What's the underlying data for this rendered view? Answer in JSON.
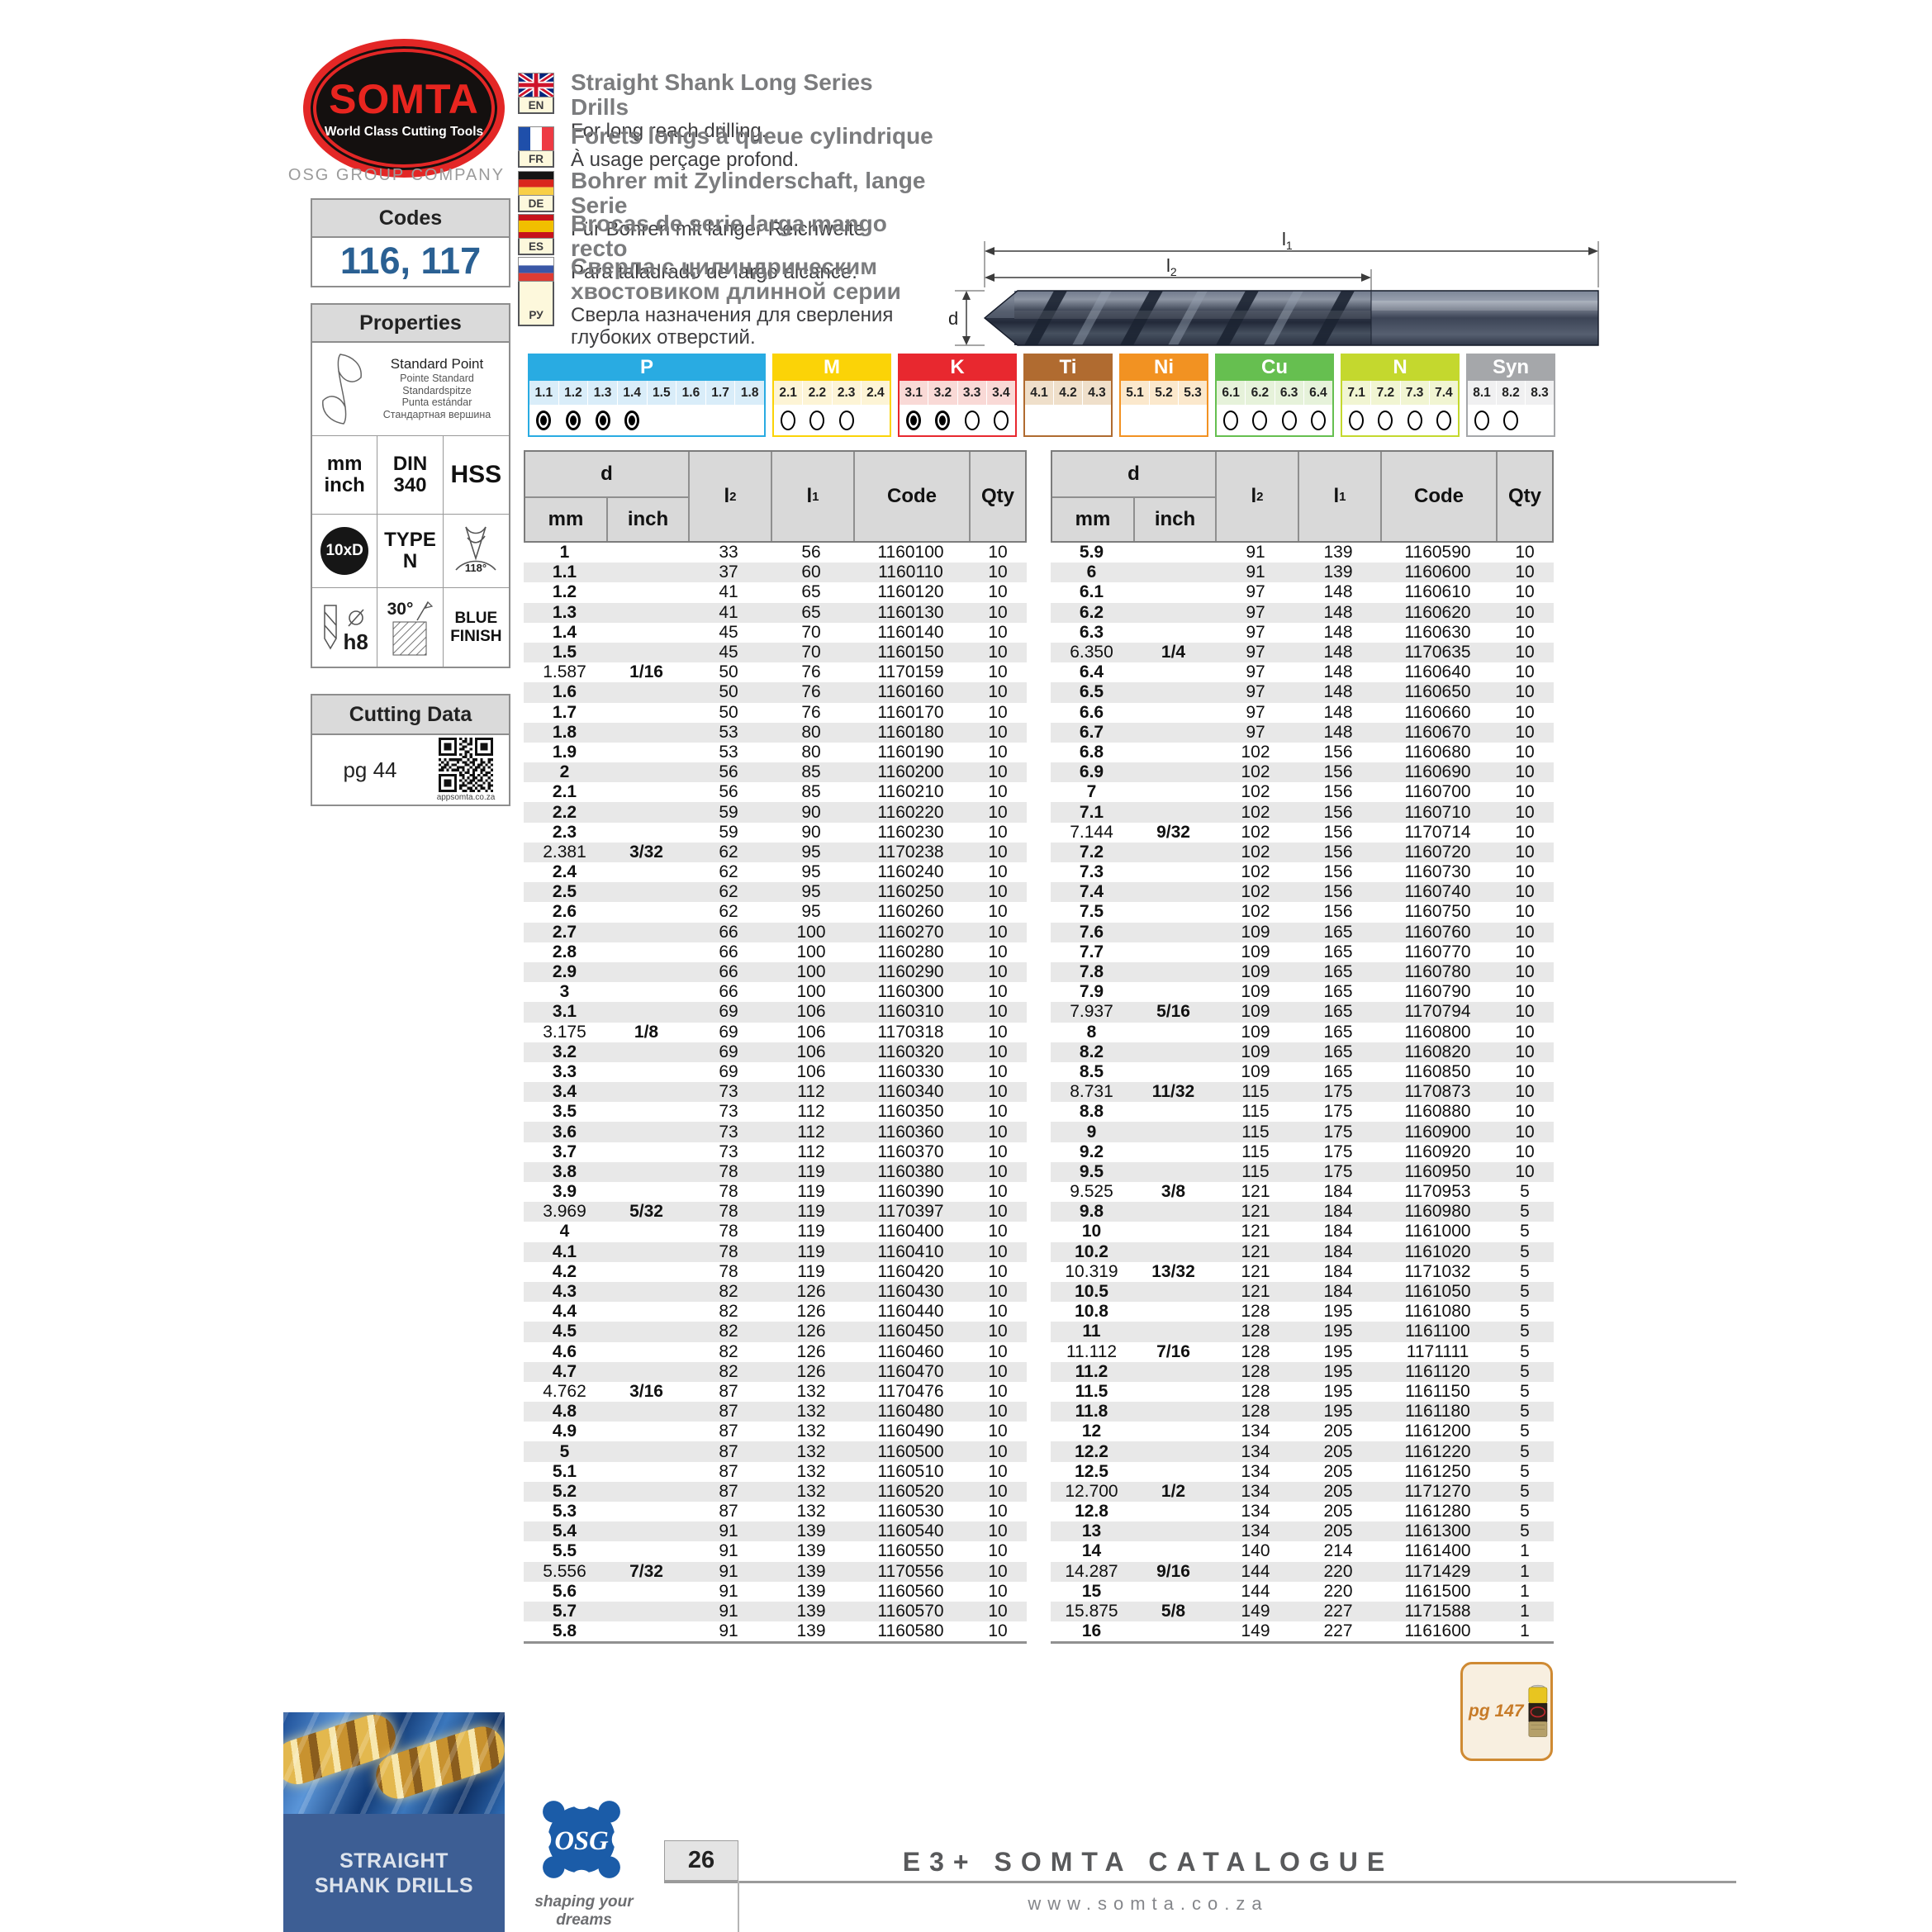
{
  "brand": {
    "logo_text": "SOMTA",
    "logo_tagline": "World Class Cutting Tools",
    "company": "OSG GROUP COMPANY",
    "osg_monogram": "OSG"
  },
  "codes": {
    "title": "Codes",
    "value": "116, 117"
  },
  "properties": {
    "title": "Properties",
    "point_names": [
      "Standard Point",
      "Pointe Standard",
      "Standardspitze",
      "Punta estándar",
      "Стандартная вершина"
    ],
    "grid": [
      {
        "kind": "lines",
        "lines": [
          "mm",
          "inch"
        ]
      },
      {
        "kind": "lines",
        "lines": [
          "DIN",
          "340"
        ]
      },
      {
        "kind": "lines",
        "size": "xl",
        "lines": [
          "HSS"
        ]
      },
      {
        "kind": "badge",
        "lines": [
          "10xD"
        ]
      },
      {
        "kind": "lines",
        "lines": [
          "TYPE",
          "N"
        ]
      },
      {
        "kind": "tip",
        "lines": [
          "118°"
        ]
      },
      {
        "kind": "h8",
        "sym": "⌀",
        "lines": [
          "h8"
        ]
      },
      {
        "kind": "angle",
        "lines": [
          "30°"
        ]
      },
      {
        "kind": "lines",
        "size": "md",
        "lines": [
          "BLUE",
          "FINISH"
        ]
      }
    ]
  },
  "cutting": {
    "title": "Cutting Data",
    "page_ref": "pg 44",
    "qr_caption": "appsomta.co.za"
  },
  "languages": [
    {
      "flag": "gb",
      "code": "EN",
      "title": "Straight Shank Long Series Drills",
      "subtitle": "For long reach drilling."
    },
    {
      "flag": "fr",
      "code": "FR",
      "title": "Forets longs à queue cylindrique",
      "subtitle": "À usage perçage profond."
    },
    {
      "flag": "de",
      "code": "DE",
      "title": "Bohrer mit Zylinderschaft, lange Serie",
      "subtitle": "Für Bohren mit langer Reichweite."
    },
    {
      "flag": "es",
      "code": "ES",
      "title": "Brocas de serie larga mango recto",
      "subtitle": "Para taladrado de largo alcance."
    },
    {
      "flag": "ru",
      "code": "РУ",
      "title": "Сверла с цилиндрическим хвостовиком длинной серии",
      "subtitle": "Сверла назначения для сверления глубоких отверстий."
    }
  ],
  "diagram": {
    "l_main": "l",
    "l1_sub": "1",
    "l2_sub": "2",
    "d_label": "d"
  },
  "materials": [
    {
      "name": "P",
      "color": "#29abe2",
      "tint": "#d9edf9",
      "items": [
        {
          "label": "1.1",
          "mark": "filled"
        },
        {
          "label": "1.2",
          "mark": "filled"
        },
        {
          "label": "1.3",
          "mark": "filled"
        },
        {
          "label": "1.4",
          "mark": "filled"
        },
        {
          "label": "1.5",
          "mark": "none"
        },
        {
          "label": "1.6",
          "mark": "none"
        },
        {
          "label": "1.7",
          "mark": "none"
        },
        {
          "label": "1.8",
          "mark": "none"
        }
      ]
    },
    {
      "name": "M",
      "color": "#fbd307",
      "tint": "#fdf4d5",
      "items": [
        {
          "label": "2.1",
          "mark": "open"
        },
        {
          "label": "2.2",
          "mark": "open"
        },
        {
          "label": "2.3",
          "mark": "open"
        },
        {
          "label": "2.4",
          "mark": "none"
        }
      ]
    },
    {
      "name": "K",
      "color": "#e8282f",
      "tint": "#f9d9d6",
      "items": [
        {
          "label": "3.1",
          "mark": "filled"
        },
        {
          "label": "3.2",
          "mark": "filled"
        },
        {
          "label": "3.3",
          "mark": "open"
        },
        {
          "label": "3.4",
          "mark": "open"
        }
      ]
    },
    {
      "name": "Ti",
      "color": "#b06b30",
      "tint": "#efdfca",
      "items": [
        {
          "label": "4.1",
          "mark": "none"
        },
        {
          "label": "4.2",
          "mark": "none"
        },
        {
          "label": "4.3",
          "mark": "none"
        }
      ]
    },
    {
      "name": "Ni",
      "color": "#f29222",
      "tint": "#fbe8cc",
      "items": [
        {
          "label": "5.1",
          "mark": "none"
        },
        {
          "label": "5.2",
          "mark": "none"
        },
        {
          "label": "5.3",
          "mark": "none"
        }
      ]
    },
    {
      "name": "Cu",
      "color": "#66bf50",
      "tint": "#e6f2da",
      "items": [
        {
          "label": "6.1",
          "mark": "open"
        },
        {
          "label": "6.2",
          "mark": "open"
        },
        {
          "label": "6.3",
          "mark": "open"
        },
        {
          "label": "6.4",
          "mark": "open"
        }
      ]
    },
    {
      "name": "N",
      "color": "#c4d82e",
      "tint": "#f1f5d2",
      "items": [
        {
          "label": "7.1",
          "mark": "open"
        },
        {
          "label": "7.2",
          "mark": "open"
        },
        {
          "label": "7.3",
          "mark": "open"
        },
        {
          "label": "7.4",
          "mark": "open"
        }
      ]
    },
    {
      "name": "Syn",
      "color": "#a5a7aa",
      "tint": "#f0f0f1",
      "items": [
        {
          "label": "8.1",
          "mark": "open"
        },
        {
          "label": "8.2",
          "mark": "open"
        },
        {
          "label": "8.3",
          "mark": "none"
        }
      ]
    }
  ],
  "table": {
    "col_d": "d",
    "col_mm": "mm",
    "col_inch": "inch",
    "col_l_main": "l",
    "col_l2_sub": "2",
    "col_l1_sub": "1",
    "col_code": "Code",
    "col_qty": "Qty",
    "left_rows": [
      [
        "1",
        "",
        "33",
        "56",
        "1160100",
        "10"
      ],
      [
        "1.1",
        "",
        "37",
        "60",
        "1160110",
        "10"
      ],
      [
        "1.2",
        "",
        "41",
        "65",
        "1160120",
        "10"
      ],
      [
        "1.3",
        "",
        "41",
        "65",
        "1160130",
        "10"
      ],
      [
        "1.4",
        "",
        "45",
        "70",
        "1160140",
        "10"
      ],
      [
        "1.5",
        "",
        "45",
        "70",
        "1160150",
        "10"
      ],
      [
        "1.587",
        "1/16",
        "50",
        "76",
        "1170159",
        "10"
      ],
      [
        "1.6",
        "",
        "50",
        "76",
        "1160160",
        "10"
      ],
      [
        "1.7",
        "",
        "50",
        "76",
        "1160170",
        "10"
      ],
      [
        "1.8",
        "",
        "53",
        "80",
        "1160180",
        "10"
      ],
      [
        "1.9",
        "",
        "53",
        "80",
        "1160190",
        "10"
      ],
      [
        "2",
        "",
        "56",
        "85",
        "1160200",
        "10"
      ],
      [
        "2.1",
        "",
        "56",
        "85",
        "1160210",
        "10"
      ],
      [
        "2.2",
        "",
        "59",
        "90",
        "1160220",
        "10"
      ],
      [
        "2.3",
        "",
        "59",
        "90",
        "1160230",
        "10"
      ],
      [
        "2.381",
        "3/32",
        "62",
        "95",
        "1170238",
        "10"
      ],
      [
        "2.4",
        "",
        "62",
        "95",
        "1160240",
        "10"
      ],
      [
        "2.5",
        "",
        "62",
        "95",
        "1160250",
        "10"
      ],
      [
        "2.6",
        "",
        "62",
        "95",
        "1160260",
        "10"
      ],
      [
        "2.7",
        "",
        "66",
        "100",
        "1160270",
        "10"
      ],
      [
        "2.8",
        "",
        "66",
        "100",
        "1160280",
        "10"
      ],
      [
        "2.9",
        "",
        "66",
        "100",
        "1160290",
        "10"
      ],
      [
        "3",
        "",
        "66",
        "100",
        "1160300",
        "10"
      ],
      [
        "3.1",
        "",
        "69",
        "106",
        "1160310",
        "10"
      ],
      [
        "3.175",
        "1/8",
        "69",
        "106",
        "1170318",
        "10"
      ],
      [
        "3.2",
        "",
        "69",
        "106",
        "1160320",
        "10"
      ],
      [
        "3.3",
        "",
        "69",
        "106",
        "1160330",
        "10"
      ],
      [
        "3.4",
        "",
        "73",
        "112",
        "1160340",
        "10"
      ],
      [
        "3.5",
        "",
        "73",
        "112",
        "1160350",
        "10"
      ],
      [
        "3.6",
        "",
        "73",
        "112",
        "1160360",
        "10"
      ],
      [
        "3.7",
        "",
        "73",
        "112",
        "1160370",
        "10"
      ],
      [
        "3.8",
        "",
        "78",
        "119",
        "1160380",
        "10"
      ],
      [
        "3.9",
        "",
        "78",
        "119",
        "1160390",
        "10"
      ],
      [
        "3.969",
        "5/32",
        "78",
        "119",
        "1170397",
        "10"
      ],
      [
        "4",
        "",
        "78",
        "119",
        "1160400",
        "10"
      ],
      [
        "4.1",
        "",
        "78",
        "119",
        "1160410",
        "10"
      ],
      [
        "4.2",
        "",
        "78",
        "119",
        "1160420",
        "10"
      ],
      [
        "4.3",
        "",
        "82",
        "126",
        "1160430",
        "10"
      ],
      [
        "4.4",
        "",
        "82",
        "126",
        "1160440",
        "10"
      ],
      [
        "4.5",
        "",
        "82",
        "126",
        "1160450",
        "10"
      ],
      [
        "4.6",
        "",
        "82",
        "126",
        "1160460",
        "10"
      ],
      [
        "4.7",
        "",
        "82",
        "126",
        "1160470",
        "10"
      ],
      [
        "4.762",
        "3/16",
        "87",
        "132",
        "1170476",
        "10"
      ],
      [
        "4.8",
        "",
        "87",
        "132",
        "1160480",
        "10"
      ],
      [
        "4.9",
        "",
        "87",
        "132",
        "1160490",
        "10"
      ],
      [
        "5",
        "",
        "87",
        "132",
        "1160500",
        "10"
      ],
      [
        "5.1",
        "",
        "87",
        "132",
        "1160510",
        "10"
      ],
      [
        "5.2",
        "",
        "87",
        "132",
        "1160520",
        "10"
      ],
      [
        "5.3",
        "",
        "87",
        "132",
        "1160530",
        "10"
      ],
      [
        "5.4",
        "",
        "91",
        "139",
        "1160540",
        "10"
      ],
      [
        "5.5",
        "",
        "91",
        "139",
        "1160550",
        "10"
      ],
      [
        "5.556",
        "7/32",
        "91",
        "139",
        "1170556",
        "10"
      ],
      [
        "5.6",
        "",
        "91",
        "139",
        "1160560",
        "10"
      ],
      [
        "5.7",
        "",
        "91",
        "139",
        "1160570",
        "10"
      ],
      [
        "5.8",
        "",
        "91",
        "139",
        "1160580",
        "10"
      ]
    ],
    "right_rows": [
      [
        "5.9",
        "",
        "91",
        "139",
        "1160590",
        "10"
      ],
      [
        "6",
        "",
        "91",
        "139",
        "1160600",
        "10"
      ],
      [
        "6.1",
        "",
        "97",
        "148",
        "1160610",
        "10"
      ],
      [
        "6.2",
        "",
        "97",
        "148",
        "1160620",
        "10"
      ],
      [
        "6.3",
        "",
        "97",
        "148",
        "1160630",
        "10"
      ],
      [
        "6.350",
        "1/4",
        "97",
        "148",
        "1170635",
        "10"
      ],
      [
        "6.4",
        "",
        "97",
        "148",
        "1160640",
        "10"
      ],
      [
        "6.5",
        "",
        "97",
        "148",
        "1160650",
        "10"
      ],
      [
        "6.6",
        "",
        "97",
        "148",
        "1160660",
        "10"
      ],
      [
        "6.7",
        "",
        "97",
        "148",
        "1160670",
        "10"
      ],
      [
        "6.8",
        "",
        "102",
        "156",
        "1160680",
        "10"
      ],
      [
        "6.9",
        "",
        "102",
        "156",
        "1160690",
        "10"
      ],
      [
        "7",
        "",
        "102",
        "156",
        "1160700",
        "10"
      ],
      [
        "7.1",
        "",
        "102",
        "156",
        "1160710",
        "10"
      ],
      [
        "7.144",
        "9/32",
        "102",
        "156",
        "1170714",
        "10"
      ],
      [
        "7.2",
        "",
        "102",
        "156",
        "1160720",
        "10"
      ],
      [
        "7.3",
        "",
        "102",
        "156",
        "1160730",
        "10"
      ],
      [
        "7.4",
        "",
        "102",
        "156",
        "1160740",
        "10"
      ],
      [
        "7.5",
        "",
        "102",
        "156",
        "1160750",
        "10"
      ],
      [
        "7.6",
        "",
        "109",
        "165",
        "1160760",
        "10"
      ],
      [
        "7.7",
        "",
        "109",
        "165",
        "1160770",
        "10"
      ],
      [
        "7.8",
        "",
        "109",
        "165",
        "1160780",
        "10"
      ],
      [
        "7.9",
        "",
        "109",
        "165",
        "1160790",
        "10"
      ],
      [
        "7.937",
        "5/16",
        "109",
        "165",
        "1170794",
        "10"
      ],
      [
        "8",
        "",
        "109",
        "165",
        "1160800",
        "10"
      ],
      [
        "8.2",
        "",
        "109",
        "165",
        "1160820",
        "10"
      ],
      [
        "8.5",
        "",
        "109",
        "165",
        "1160850",
        "10"
      ],
      [
        "8.731",
        "11/32",
        "115",
        "175",
        "1170873",
        "10"
      ],
      [
        "8.8",
        "",
        "115",
        "175",
        "1160880",
        "10"
      ],
      [
        "9",
        "",
        "115",
        "175",
        "1160900",
        "10"
      ],
      [
        "9.2",
        "",
        "115",
        "175",
        "1160920",
        "10"
      ],
      [
        "9.5",
        "",
        "115",
        "175",
        "1160950",
        "10"
      ],
      [
        "9.525",
        "3/8",
        "121",
        "184",
        "1170953",
        "5"
      ],
      [
        "9.8",
        "",
        "121",
        "184",
        "1160980",
        "5"
      ],
      [
        "10",
        "",
        "121",
        "184",
        "1161000",
        "5"
      ],
      [
        "10.2",
        "",
        "121",
        "184",
        "1161020",
        "5"
      ],
      [
        "10.319",
        "13/32",
        "121",
        "184",
        "1171032",
        "5"
      ],
      [
        "10.5",
        "",
        "121",
        "184",
        "1161050",
        "5"
      ],
      [
        "10.8",
        "",
        "128",
        "195",
        "1161080",
        "5"
      ],
      [
        "11",
        "",
        "128",
        "195",
        "1161100",
        "5"
      ],
      [
        "11.112",
        "7/16",
        "128",
        "195",
        "1171111",
        "5"
      ],
      [
        "11.2",
        "",
        "128",
        "195",
        "1161120",
        "5"
      ],
      [
        "11.5",
        "",
        "128",
        "195",
        "1161150",
        "5"
      ],
      [
        "11.8",
        "",
        "128",
        "195",
        "1161180",
        "5"
      ],
      [
        "12",
        "",
        "134",
        "205",
        "1161200",
        "5"
      ],
      [
        "12.2",
        "",
        "134",
        "205",
        "1161220",
        "5"
      ],
      [
        "12.5",
        "",
        "134",
        "205",
        "1161250",
        "5"
      ],
      [
        "12.700",
        "1/2",
        "134",
        "205",
        "1171270",
        "5"
      ],
      [
        "12.8",
        "",
        "134",
        "205",
        "1161280",
        "5"
      ],
      [
        "13",
        "",
        "134",
        "205",
        "1161300",
        "5"
      ],
      [
        "14",
        "",
        "140",
        "214",
        "1161400",
        "1"
      ],
      [
        "14.287",
        "9/16",
        "144",
        "220",
        "1171429",
        "1"
      ],
      [
        "15",
        "",
        "144",
        "220",
        "1161500",
        "1"
      ],
      [
        "15.875",
        "5/8",
        "149",
        "227",
        "1171588",
        "1"
      ],
      [
        "16",
        "",
        "149",
        "227",
        "1161600",
        "1"
      ]
    ]
  },
  "footer": {
    "panel_lines": [
      "STRAIGHT",
      "SHANK DRILLS"
    ],
    "osg_slogan": "shaping your dreams",
    "page_number": "26",
    "catalogue": "E3+ SOMTA CATALOGUE",
    "website": "www.somta.co.za",
    "pg_ref": "pg 147"
  }
}
